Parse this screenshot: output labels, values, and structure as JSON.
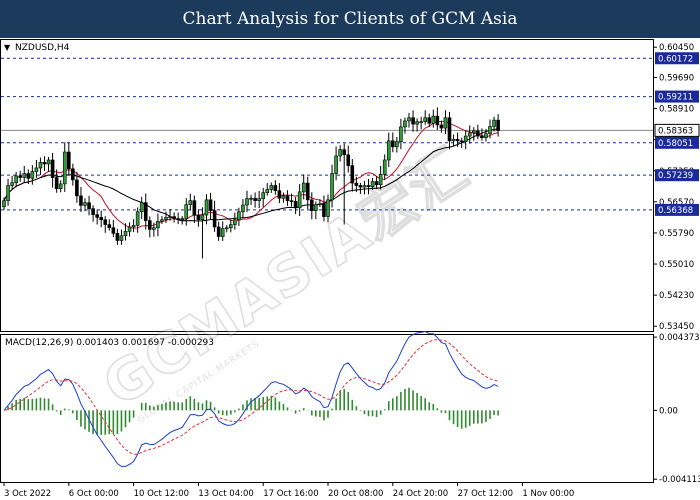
{
  "banner": {
    "title": "Chart Analysis for Clients of GCM Asia"
  },
  "watermark": {
    "brand": "GCMASIA宏汇",
    "tagline": "GLOBAL CAPITAL MARKETS"
  },
  "chart_data": [
    {
      "type": "candlestick",
      "title": "NZDUSD,H4",
      "symbol_marker": "▼",
      "price_range": [
        0.5333,
        0.6063
      ],
      "y_ticks": [
        "0.60450",
        "0.59690",
        "0.58910",
        "0.58130",
        "0.57350",
        "0.56570",
        "0.55790",
        "0.55010",
        "0.54230",
        "0.53450"
      ],
      "y_tick_values": [
        0.6045,
        0.5969,
        0.5891,
        0.5813,
        0.5735,
        0.5657,
        0.5579,
        0.5501,
        0.5423,
        0.5345
      ],
      "levels": [
        {
          "label": "0.60172",
          "value": 0.60172,
          "kind": "resistance"
        },
        {
          "label": "0.59211",
          "value": 0.59211,
          "kind": "resistance"
        },
        {
          "label": "0.58051",
          "value": 0.58051,
          "kind": "resistance"
        },
        {
          "label": "0.57239",
          "value": 0.57239,
          "kind": "support"
        },
        {
          "label": "0.56368",
          "value": 0.56368,
          "kind": "support"
        }
      ],
      "current_price": {
        "label": "0.58363",
        "value": 0.58363
      },
      "x_ticks": [
        "3 Oct 2022",
        "6 Oct 00:00",
        "10 Oct 12:00",
        "13 Oct 04:00",
        "17 Oct 16:00",
        "20 Oct 08:00",
        "24 Oct 20:00",
        "27 Oct 12:00",
        "1 Nov 00:00"
      ],
      "x_tick_bars": [
        0,
        16,
        32,
        48,
        64,
        80,
        96,
        112,
        128
      ],
      "moving_averages": [
        {
          "color": "#c8102e",
          "period_hint": "fast"
        },
        {
          "color": "#000000",
          "period_hint": "slow"
        }
      ],
      "candles_per_tick": 4,
      "closes": [
        0.566,
        0.5698,
        0.5705,
        0.5722,
        0.5718,
        0.5728,
        0.5716,
        0.5733,
        0.5742,
        0.5756,
        0.5752,
        0.5762,
        0.5718,
        0.569,
        0.5702,
        0.5782,
        0.574,
        0.5712,
        0.5672,
        0.5648,
        0.5655,
        0.564,
        0.5625,
        0.5618,
        0.5612,
        0.56,
        0.5592,
        0.5578,
        0.556,
        0.5572,
        0.5583,
        0.5594,
        0.5598,
        0.5632,
        0.5655,
        0.561,
        0.5588,
        0.5592,
        0.5608,
        0.5612,
        0.5618,
        0.562,
        0.5615,
        0.5612,
        0.5615,
        0.565,
        0.566,
        0.5624,
        0.5612,
        0.5624,
        0.5662,
        0.5635,
        0.5594,
        0.557,
        0.559,
        0.5592,
        0.56,
        0.5612,
        0.5632,
        0.5649,
        0.5665,
        0.5666,
        0.566,
        0.5665,
        0.568,
        0.5688,
        0.5698,
        0.5685,
        0.5666,
        0.5672,
        0.566,
        0.5658,
        0.5642,
        0.5682,
        0.5704,
        0.5662,
        0.5635,
        0.565,
        0.5652,
        0.562,
        0.5662,
        0.5728,
        0.5772,
        0.5788,
        0.5775,
        0.5748,
        0.5704,
        0.5698,
        0.5694,
        0.5698,
        0.5695,
        0.5708,
        0.57,
        0.5726,
        0.5762,
        0.581,
        0.5795,
        0.5808,
        0.5845,
        0.586,
        0.5868,
        0.5852,
        0.5858,
        0.5858,
        0.5868,
        0.5854,
        0.5872,
        0.585,
        0.5842,
        0.5868,
        0.581,
        0.5814,
        0.581,
        0.5808,
        0.5822,
        0.583,
        0.5835,
        0.5822,
        0.5818,
        0.5828,
        0.5846,
        0.5862,
        0.5836
      ]
    },
    {
      "type": "macd",
      "title": "MACD(12,26,9) 0.001403 0.001697 -0.000293",
      "params": [
        12,
        26,
        9
      ],
      "value_range": [
        -0.00428,
        0.0045
      ],
      "y_ticks": [
        "0.004373",
        "0.00",
        "-0.004113"
      ],
      "y_tick_values": [
        0.004373,
        0.0,
        -0.004113
      ],
      "macd_color": "#1a3fd1",
      "signal_color": "#e03030",
      "histogram_color": "#2e8b2e"
    }
  ]
}
